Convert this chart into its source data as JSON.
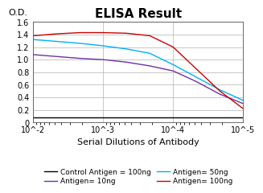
{
  "title": "ELISA Result",
  "ylabel": "O.D.",
  "xlabel": "Serial Dilutions of Antibody",
  "ylim": [
    0,
    1.6
  ],
  "yticks": [
    0,
    0.2,
    0.4,
    0.6,
    0.8,
    1.0,
    1.2,
    1.4,
    1.6
  ],
  "xticks_log": [
    -2,
    -3,
    -4,
    -5
  ],
  "x_values_log": [
    -2.0,
    -2.333,
    -2.667,
    -3.0,
    -3.333,
    -3.667,
    -4.0,
    -4.333,
    -4.667,
    -5.0
  ],
  "lines": [
    {
      "label": "Control Antigen = 100ng",
      "color": "#000000",
      "y_values": [
        0.08,
        0.08,
        0.08,
        0.08,
        0.08,
        0.08,
        0.08,
        0.08,
        0.08,
        0.08
      ]
    },
    {
      "label": "Antigen= 10ng",
      "color": "#7030A0",
      "y_values": [
        1.08,
        1.05,
        1.02,
        1.0,
        0.96,
        0.9,
        0.82,
        0.65,
        0.45,
        0.3
      ]
    },
    {
      "label": "Antigen= 50ng",
      "color": "#00B0F0",
      "y_values": [
        1.32,
        1.29,
        1.26,
        1.22,
        1.17,
        1.1,
        0.92,
        0.72,
        0.52,
        0.35
      ]
    },
    {
      "label": "Antigen= 100ng",
      "color": "#CC0000",
      "y_values": [
        1.38,
        1.41,
        1.43,
        1.43,
        1.42,
        1.38,
        1.2,
        0.85,
        0.5,
        0.22
      ]
    }
  ],
  "background_color": "#ffffff",
  "grid_color": "#b0b0b0",
  "title_fontsize": 11,
  "tick_fontsize": 7,
  "xlabel_fontsize": 8,
  "legend_fontsize": 6.5
}
